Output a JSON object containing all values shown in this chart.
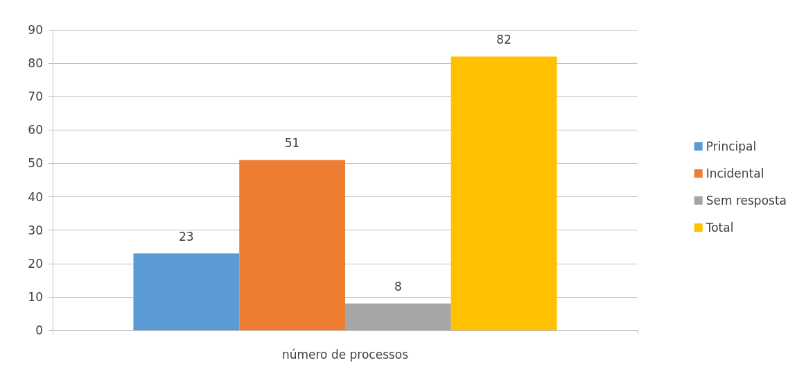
{
  "chart_data": {
    "type": "bar",
    "categories": [
      "número de processos"
    ],
    "series": [
      {
        "name": "Principal",
        "color": "#5b9bd5",
        "values": [
          23
        ]
      },
      {
        "name": "Incidental",
        "color": "#ed7d31",
        "values": [
          51
        ]
      },
      {
        "name": "Sem resposta",
        "color": "#a5a5a5",
        "values": [
          8
        ]
      },
      {
        "name": "Total",
        "color": "#ffc000",
        "values": [
          82
        ]
      }
    ],
    "ylim": [
      0,
      90
    ],
    "yticks": [
      0,
      10,
      20,
      30,
      40,
      50,
      60,
      70,
      80,
      90
    ],
    "grid": "y",
    "legend": "right",
    "data_labels": true
  }
}
